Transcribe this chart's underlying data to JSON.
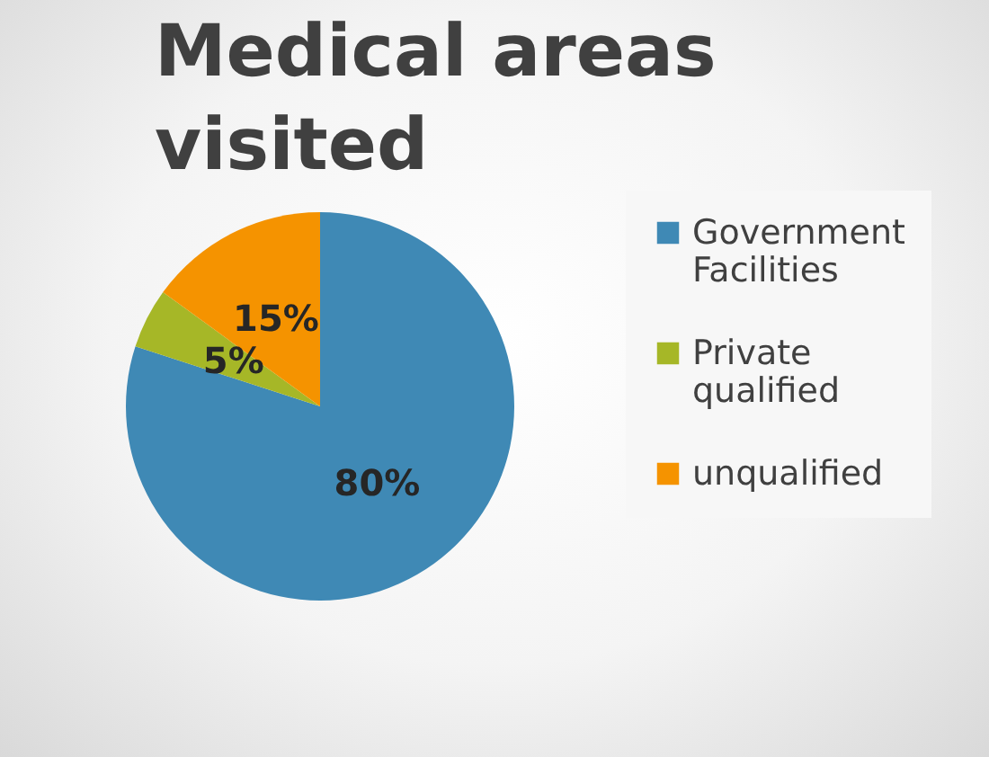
{
  "chart_data": {
    "type": "pie",
    "title": "Medical areas visited",
    "categories": [
      "Government Facilities",
      "Private qualified",
      "unqualified"
    ],
    "values": [
      80,
      5,
      15
    ],
    "colors": [
      "#3f89b5",
      "#a6b727",
      "#f59300"
    ],
    "value_labels": [
      "80%",
      "5%",
      "15%"
    ],
    "legend": "right"
  }
}
